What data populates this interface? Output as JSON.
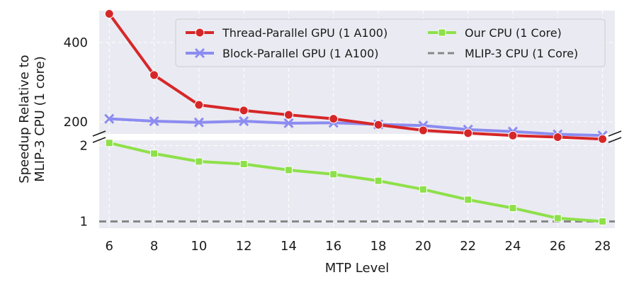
{
  "chart_data": {
    "type": "line",
    "xlabel": "MTP Level",
    "ylabel_lines": [
      "Speedup Relative to",
      "MLIP-3 CPU (1 core)"
    ],
    "x": [
      6,
      8,
      10,
      12,
      14,
      16,
      18,
      20,
      22,
      24,
      26,
      28
    ],
    "x_ticks": [
      "6",
      "8",
      "10",
      "12",
      "14",
      "16",
      "18",
      "20",
      "22",
      "24",
      "26",
      "28"
    ],
    "top_panel": {
      "ylim": [
        170,
        480
      ],
      "yticks": [
        200,
        400
      ],
      "ytick_labels": [
        "200",
        "400"
      ]
    },
    "bottom_panel": {
      "scale": "log",
      "ylim": [
        0.94,
        2.1
      ],
      "yticks": [
        1,
        2
      ],
      "ytick_labels": [
        "1",
        "2"
      ]
    },
    "series": [
      {
        "name": "Thread-Parallel GPU (1 A100)",
        "panel": "top",
        "color": "#d62728",
        "marker": "circle",
        "values": [
          472,
          318,
          243,
          229,
          218,
          208,
          193,
          179,
          172,
          166,
          162,
          157
        ]
      },
      {
        "name": "Block-Parallel GPU (1 A100)",
        "panel": "top",
        "color": "#8c8cf0",
        "marker": "x",
        "values": [
          208,
          202,
          199,
          202,
          197,
          198,
          194,
          191,
          181,
          176,
          169,
          166
        ]
      },
      {
        "name": "Our CPU (1 Core)",
        "panel": "bottom",
        "color": "#8ee04a",
        "marker": "square",
        "values": [
          2.05,
          1.86,
          1.73,
          1.69,
          1.6,
          1.54,
          1.45,
          1.34,
          1.22,
          1.13,
          1.03,
          1.0
        ]
      },
      {
        "name": "MLIP-3 CPU (1 Core)",
        "panel": "bottom",
        "color": "#888888",
        "marker": "none",
        "dashed": true,
        "values": [
          1,
          1,
          1,
          1,
          1,
          1,
          1,
          1,
          1,
          1,
          1,
          1
        ]
      }
    ],
    "legend": {
      "location": "top-right",
      "columns": 2
    },
    "grid": true
  }
}
